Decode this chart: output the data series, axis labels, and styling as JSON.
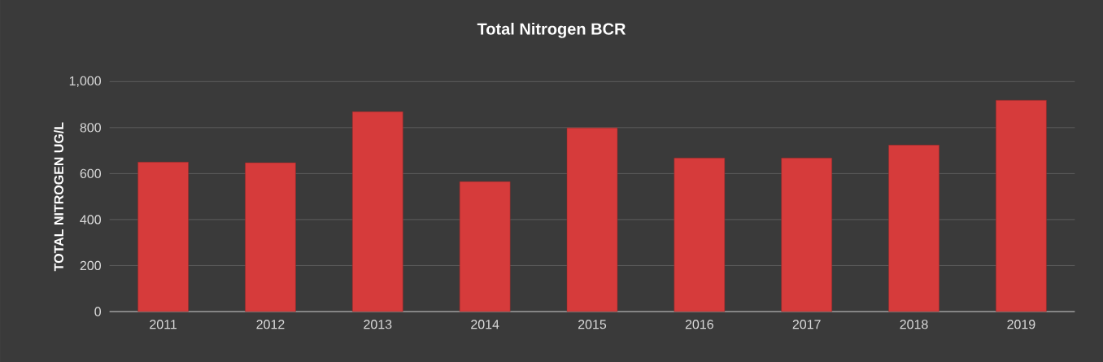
{
  "chart_data": {
    "type": "bar",
    "title": "Total Nitrogen BCR",
    "ylabel": "TOTAL NITROGEN UG/L",
    "categories": [
      "2011",
      "2012",
      "2013",
      "2014",
      "2015",
      "2016",
      "2017",
      "2018",
      "2019"
    ],
    "values": [
      650,
      647,
      869,
      565,
      799,
      668,
      668,
      724,
      919
    ],
    "color": "#d63b3b",
    "ylim": [
      0,
      1000
    ],
    "yticks": [
      0,
      200,
      400,
      600,
      800,
      {
        "value": 1000,
        "label": "1,000"
      }
    ],
    "grid": "y"
  }
}
